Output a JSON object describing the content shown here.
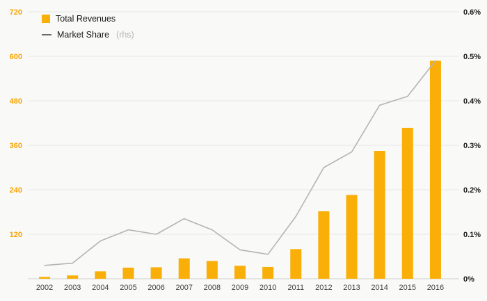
{
  "legend": {
    "revenues_label": "Total Revenues",
    "market_share_label": "Market Share",
    "market_share_suffix": "(rhs)"
  },
  "colors": {
    "bar": "#F9AF08",
    "line": "#B4B4B4",
    "left_axis_text": "#F9A300",
    "right_axis_text": "#1A1A1A",
    "x_axis_text": "#3d3d3d",
    "background": "#F9F9F7",
    "grid": "#E7E7E5",
    "axis_line": "#CFCFCD"
  },
  "chart_data": {
    "type": "bar+line",
    "title": "",
    "categories": [
      "2002",
      "2003",
      "2004",
      "2005",
      "2006",
      "2007",
      "2008",
      "2009",
      "2010",
      "2011",
      "2012",
      "2013",
      "2014",
      "2015",
      "2016"
    ],
    "series": [
      {
        "name": "Total Revenues",
        "type": "bar",
        "axis": "left",
        "values": [
          5,
          9,
          20,
          30,
          31,
          55,
          48,
          35,
          32,
          80,
          182,
          226,
          345,
          407,
          588
        ]
      },
      {
        "name": "Market Share (rhs)",
        "type": "line",
        "axis": "right",
        "values": [
          0.03,
          0.035,
          0.085,
          0.11,
          0.1,
          0.135,
          0.11,
          0.065,
          0.055,
          0.14,
          0.25,
          0.285,
          0.39,
          0.41,
          0.49
        ]
      }
    ],
    "left_axis": {
      "max": 720,
      "gridline_step": 120,
      "labels": [
        "120",
        "240",
        "360",
        "480",
        "600",
        "720"
      ]
    },
    "right_axis": {
      "max": 0.6,
      "labels": [
        "0%",
        "0.1%",
        "0.2%",
        "0.3%",
        "0.4%",
        "0.5%",
        "0.6%"
      ]
    },
    "legend_position": "top-left",
    "grid": "horizontal-only"
  }
}
